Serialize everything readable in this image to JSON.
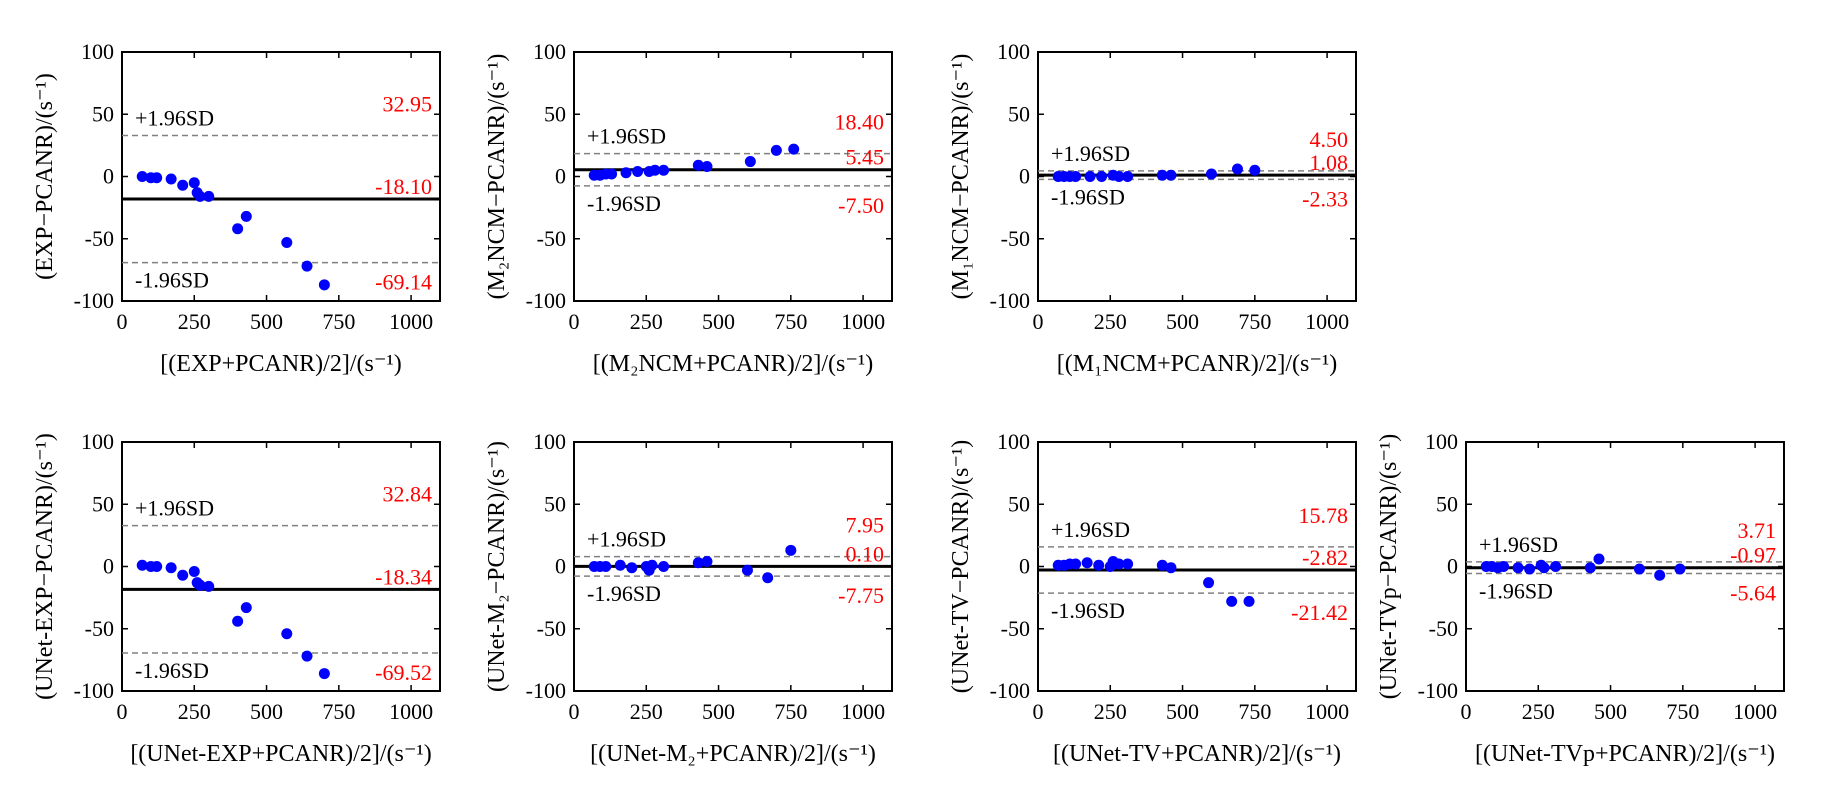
{
  "chart_data": [
    {
      "type": "scatter",
      "xlabel": "[(EXP+PCANR)/2]/(s⁻¹)",
      "ylabel": "(EXP−PCANR)/(s⁻¹)",
      "xlim": [
        0,
        1100
      ],
      "ylim": [
        -100,
        100
      ],
      "xticks": [
        "0",
        "250",
        "500",
        "750",
        "1000"
      ],
      "yticks": [
        "100",
        "50",
        "0",
        "-50",
        "-100"
      ],
      "grid": false,
      "upper_label": "+1.96SD",
      "lower_label": "-1.96SD",
      "upper": 32.95,
      "mean": -18.1,
      "lower": -69.14,
      "upper_text": "32.95",
      "mean_text": "-18.10",
      "lower_text": "-69.14",
      "points": [
        [
          70,
          0
        ],
        [
          100,
          -1
        ],
        [
          120,
          -1
        ],
        [
          170,
          -2
        ],
        [
          210,
          -7
        ],
        [
          250,
          -5
        ],
        [
          260,
          -13
        ],
        [
          270,
          -16
        ],
        [
          300,
          -16
        ],
        [
          400,
          -42
        ],
        [
          430,
          -32
        ],
        [
          570,
          -53
        ],
        [
          640,
          -72
        ],
        [
          700,
          -87
        ]
      ]
    },
    {
      "type": "scatter",
      "xlabel": "[(M₂NCM+PCANR)/2]/(s⁻¹)",
      "ylabel": "(M₂NCM−PCANR)/(s⁻¹)",
      "xlim": [
        0,
        1100
      ],
      "ylim": [
        -100,
        100
      ],
      "xticks": [
        "0",
        "250",
        "500",
        "750",
        "1000"
      ],
      "yticks": [
        "100",
        "50",
        "0",
        "-50",
        "-100"
      ],
      "grid": false,
      "upper_label": "+1.96SD",
      "lower_label": "-1.96SD",
      "upper": 18.4,
      "mean": 5.45,
      "lower": -7.5,
      "upper_text": "18.40",
      "mean_text": "5.45",
      "lower_text": "-7.50",
      "points": [
        [
          70,
          1
        ],
        [
          90,
          1
        ],
        [
          110,
          2
        ],
        [
          130,
          2
        ],
        [
          180,
          3
        ],
        [
          220,
          4
        ],
        [
          260,
          4
        ],
        [
          280,
          5
        ],
        [
          310,
          5
        ],
        [
          430,
          9
        ],
        [
          460,
          8
        ],
        [
          610,
          12
        ],
        [
          700,
          21
        ],
        [
          760,
          22
        ]
      ]
    },
    {
      "type": "scatter",
      "xlabel": "[(M₁NCM+PCANR)/2]/(s⁻¹)",
      "ylabel": "(M₁NCM−PCANR)/(s⁻¹)",
      "xlim": [
        0,
        1100
      ],
      "ylim": [
        -100,
        100
      ],
      "xticks": [
        "0",
        "250",
        "500",
        "750",
        "1000"
      ],
      "yticks": [
        "100",
        "50",
        "0",
        "-50",
        "-100"
      ],
      "grid": false,
      "upper_label": "+1.96SD",
      "lower_label": "-1.96SD",
      "upper": 4.5,
      "mean": 1.08,
      "lower": -2.33,
      "upper_text": "4.50",
      "mean_text": "1.08",
      "lower_text": "-2.33",
      "points": [
        [
          70,
          0
        ],
        [
          90,
          0
        ],
        [
          110,
          0
        ],
        [
          130,
          0
        ],
        [
          180,
          0
        ],
        [
          220,
          0
        ],
        [
          260,
          1
        ],
        [
          280,
          0
        ],
        [
          310,
          0
        ],
        [
          430,
          1
        ],
        [
          460,
          1
        ],
        [
          600,
          2
        ],
        [
          690,
          6
        ],
        [
          750,
          5
        ]
      ]
    },
    {
      "type": "scatter",
      "xlabel": "[(UNet-EXP+PCANR)/2]/(s⁻¹)",
      "ylabel": "(UNet-EXP−PCANR)/(s⁻¹)",
      "xlim": [
        0,
        1100
      ],
      "ylim": [
        -100,
        100
      ],
      "xticks": [
        "0",
        "250",
        "500",
        "750",
        "1000"
      ],
      "yticks": [
        "100",
        "50",
        "0",
        "-50",
        "-100"
      ],
      "grid": false,
      "upper_label": "+1.96SD",
      "lower_label": "-1.96SD",
      "upper": 32.84,
      "mean": -18.34,
      "lower": -69.52,
      "upper_text": "32.84",
      "mean_text": "-18.34",
      "lower_text": "-69.52",
      "points": [
        [
          70,
          1
        ],
        [
          100,
          0
        ],
        [
          120,
          0
        ],
        [
          170,
          -1
        ],
        [
          210,
          -7
        ],
        [
          250,
          -4
        ],
        [
          260,
          -13
        ],
        [
          270,
          -15
        ],
        [
          300,
          -16
        ],
        [
          400,
          -44
        ],
        [
          430,
          -33
        ],
        [
          570,
          -54
        ],
        [
          640,
          -72
        ],
        [
          700,
          -86
        ]
      ]
    },
    {
      "type": "scatter",
      "xlabel": "[(UNet-M₂+PCANR)/2]/(s⁻¹)",
      "ylabel": "(UNet-M₂−PCANR)/(s⁻¹)",
      "xlim": [
        0,
        1100
      ],
      "ylim": [
        -100,
        100
      ],
      "xticks": [
        "0",
        "250",
        "500",
        "750",
        "1000"
      ],
      "yticks": [
        "100",
        "50",
        "0",
        "-50",
        "-100"
      ],
      "grid": false,
      "upper_label": "+1.96SD",
      "lower_label": "-1.96SD",
      "upper": 7.95,
      "mean": 0.1,
      "lower": -7.75,
      "upper_text": "7.95",
      "mean_text": "0.10",
      "lower_text": "-7.75",
      "points": [
        [
          70,
          0
        ],
        [
          90,
          0
        ],
        [
          110,
          0
        ],
        [
          160,
          1
        ],
        [
          200,
          -1
        ],
        [
          250,
          0
        ],
        [
          260,
          -3
        ],
        [
          270,
          1
        ],
        [
          310,
          0
        ],
        [
          430,
          3
        ],
        [
          460,
          4
        ],
        [
          600,
          -3
        ],
        [
          670,
          -9
        ],
        [
          750,
          13
        ]
      ]
    },
    {
      "type": "scatter",
      "xlabel": "[(UNet-TV+PCANR)/2]/(s⁻¹)",
      "ylabel": "(UNet-TV−PCANR)/(s⁻¹)",
      "xlim": [
        0,
        1100
      ],
      "ylim": [
        -100,
        100
      ],
      "xticks": [
        "0",
        "250",
        "500",
        "750",
        "1000"
      ],
      "yticks": [
        "100",
        "50",
        "0",
        "-50",
        "-100"
      ],
      "grid": false,
      "upper_label": "+1.96SD",
      "lower_label": "-1.96SD",
      "upper": 15.78,
      "mean": -2.82,
      "lower": -21.42,
      "upper_text": "15.78",
      "mean_text": "-2.82",
      "lower_text": "-21.42",
      "points": [
        [
          70,
          1
        ],
        [
          90,
          1
        ],
        [
          110,
          2
        ],
        [
          130,
          2
        ],
        [
          170,
          3
        ],
        [
          210,
          1
        ],
        [
          250,
          0
        ],
        [
          260,
          4
        ],
        [
          280,
          2
        ],
        [
          310,
          2
        ],
        [
          430,
          1
        ],
        [
          460,
          -1
        ],
        [
          590,
          -13
        ],
        [
          670,
          -28
        ],
        [
          730,
          -28
        ]
      ]
    },
    {
      "type": "scatter",
      "xlabel": "[(UNet-TVp+PCANR)/2]/(s⁻¹)",
      "ylabel": "(UNet-TVp−PCANR)/(s⁻¹)",
      "xlim": [
        0,
        1100
      ],
      "ylim": [
        -100,
        100
      ],
      "xticks": [
        "0",
        "250",
        "500",
        "750",
        "1000"
      ],
      "yticks": [
        "100",
        "50",
        "0",
        "-50",
        "-100"
      ],
      "grid": false,
      "upper_label": "+1.96SD",
      "lower_label": "-1.96SD",
      "upper": 3.71,
      "mean": -0.97,
      "lower": -5.64,
      "upper_text": "3.71",
      "mean_text": "-0.97",
      "lower_text": "-5.64",
      "points": [
        [
          70,
          0
        ],
        [
          90,
          0
        ],
        [
          110,
          -1
        ],
        [
          130,
          0
        ],
        [
          180,
          -1
        ],
        [
          220,
          -2
        ],
        [
          260,
          1
        ],
        [
          270,
          -1
        ],
        [
          310,
          0
        ],
        [
          430,
          -1
        ],
        [
          460,
          6
        ],
        [
          600,
          -2
        ],
        [
          670,
          -7
        ],
        [
          740,
          -2
        ]
      ]
    }
  ]
}
